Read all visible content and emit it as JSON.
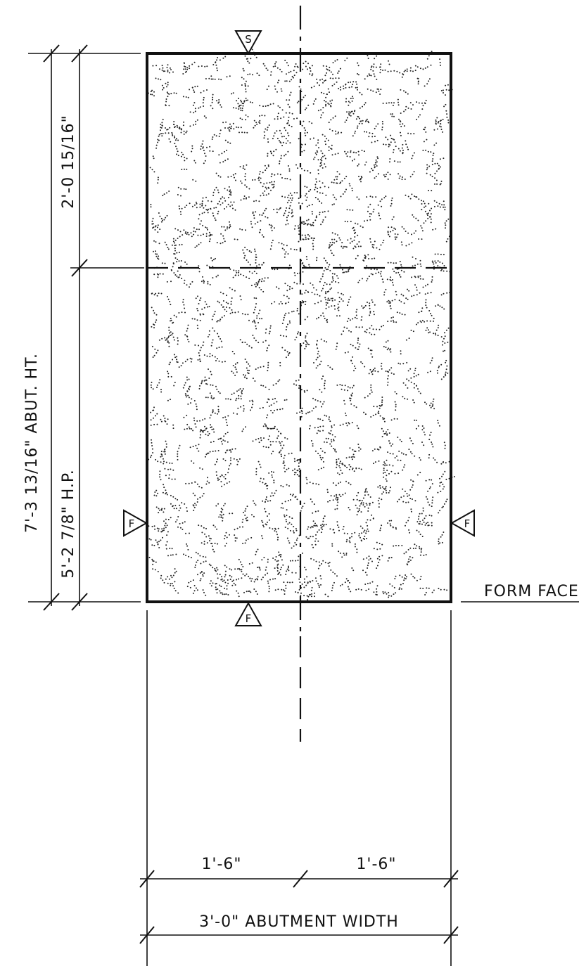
{
  "dimensions": {
    "overall_height": "7'-3 13/16\" ABUT. HT.",
    "upper_height": "2'-0 15/16\"",
    "lower_height": "5'-2 7/8\" H.P.",
    "left_width": "1'-6\"",
    "right_width": "1'-6\"",
    "total_width": "3'-0\" ABUTMENT WIDTH"
  },
  "notes": {
    "form_face": "FORM FACE"
  },
  "finish_marks": {
    "top": "S",
    "left": "F",
    "right": "F",
    "bottom": "F"
  },
  "colors": {
    "ink": "#111111",
    "background": "#ffffff"
  }
}
